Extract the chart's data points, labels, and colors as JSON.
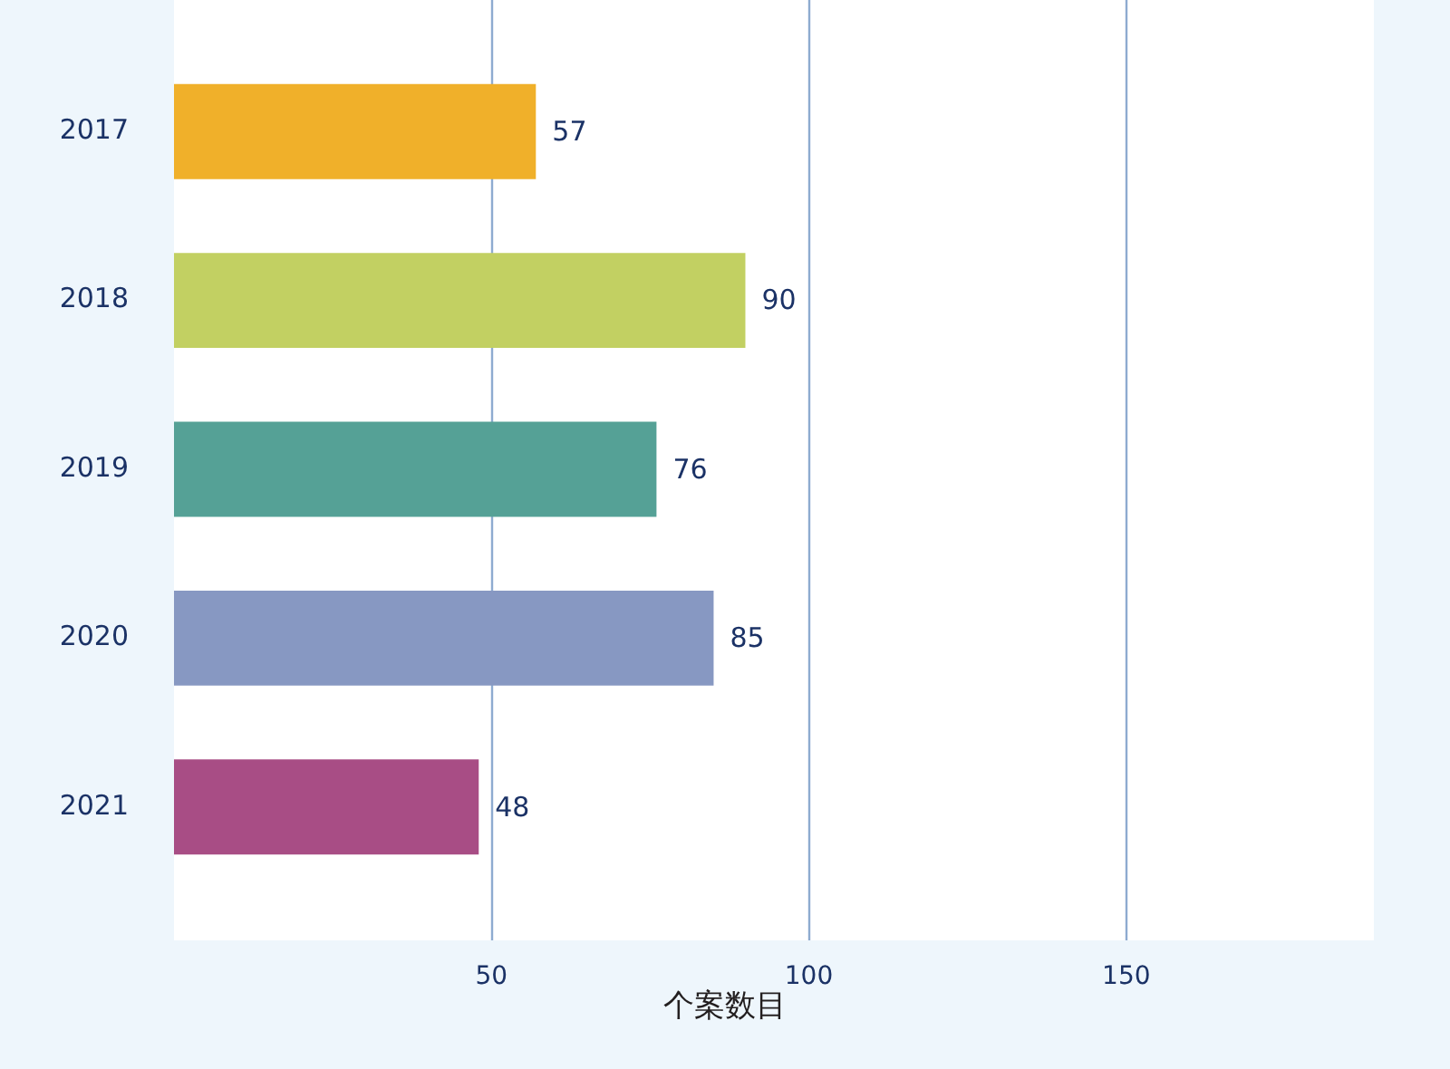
{
  "chart_data": {
    "type": "bar",
    "orientation": "horizontal",
    "categories": [
      "2017",
      "2018",
      "2019",
      "2020",
      "2021"
    ],
    "values": [
      57,
      90,
      76,
      85,
      48
    ],
    "colors": [
      "#f0b02a",
      "#c2d062",
      "#55a196",
      "#8798c2",
      "#a84d85"
    ],
    "xlabel": "个案数目",
    "xlim": [
      0,
      189
    ],
    "xticks": [
      50,
      100,
      150
    ],
    "grid": "x",
    "data_labels": true
  }
}
